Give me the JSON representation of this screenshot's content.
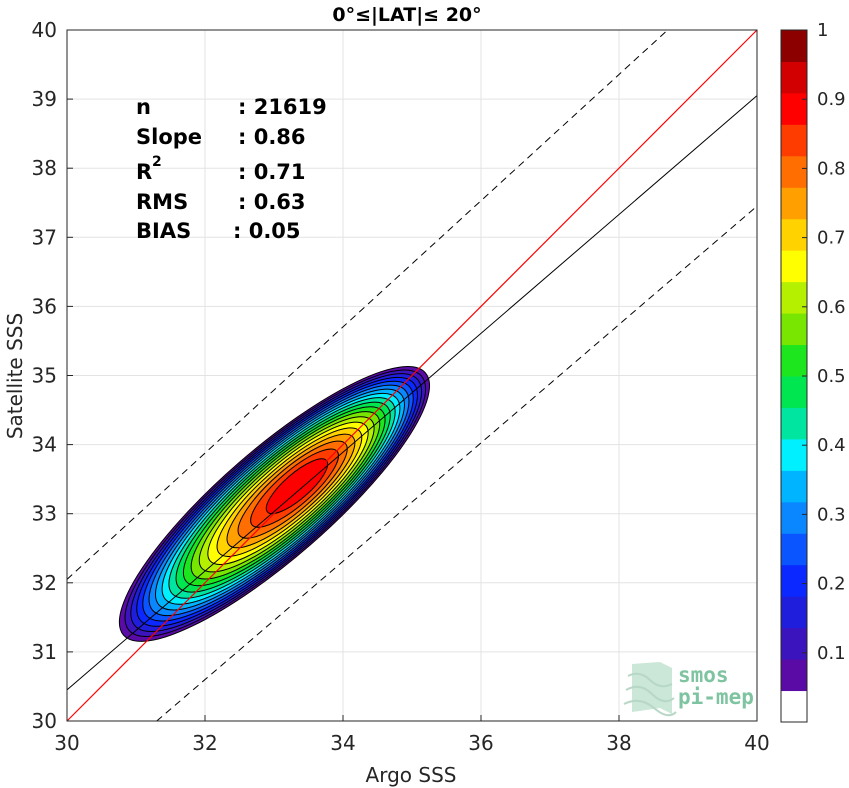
{
  "chart_data": {
    "type": "contour-scatter",
    "title": "0°≤|LAT|≤ 20°",
    "xlabel": "Argo SSS",
    "ylabel": "Satellite SSS",
    "xlim": [
      30,
      40
    ],
    "ylim": [
      30,
      40
    ],
    "xticks": [
      30,
      32,
      34,
      36,
      38,
      40
    ],
    "yticks": [
      30,
      31,
      32,
      33,
      34,
      35,
      36,
      37,
      38,
      39,
      40
    ],
    "grid": true,
    "stats": {
      "n": {
        "label": "n",
        "value": ": 21619"
      },
      "slope": {
        "label": "Slope",
        "value": ": 0.86"
      },
      "r2": {
        "label": "R",
        "sup": "2",
        "value": ": 0.71"
      },
      "rms": {
        "label": "RMS",
        "value": ": 0.63"
      },
      "bias": {
        "label": "BIAS",
        "value": ": 0.05"
      }
    },
    "lines": {
      "identity": {
        "slope": 1,
        "intercept": 0,
        "color": "#ff0000"
      },
      "regression": {
        "slope": 0.86,
        "x0": 30,
        "y0": 30.45,
        "color": "#000000"
      },
      "upper_bound": {
        "x0": 30,
        "y0": 32.05,
        "x1": 39.8,
        "y1": 41.0,
        "style": "dashed"
      },
      "lower_bound": {
        "x0": 31.3,
        "y0": 30,
        "x1": 40,
        "y1": 37.45,
        "style": "dashed"
      }
    },
    "density_peak": {
      "x": 33.4,
      "y": 33.45
    },
    "contour_levels": [
      0.05,
      0.1,
      0.15,
      0.2,
      0.25,
      0.3,
      0.35,
      0.4,
      0.45,
      0.5,
      0.55,
      0.6,
      0.65,
      0.7,
      0.75,
      0.8,
      0.85,
      0.9,
      0.95
    ],
    "colorbar": {
      "ticks": [
        "0.1",
        "0.2",
        "0.3",
        "0.4",
        "0.5",
        "0.6",
        "0.7",
        "0.8",
        "0.9",
        "1"
      ],
      "tick_values": [
        0.1,
        0.2,
        0.3,
        0.4,
        0.5,
        0.6,
        0.7,
        0.8,
        0.9,
        1.0
      ],
      "colors": [
        "#ffffff",
        "#5a0aa5",
        "#3c14be",
        "#1e1edc",
        "#0a28ff",
        "#0a55ff",
        "#0a87ff",
        "#00b4ff",
        "#00f0ff",
        "#00e6a0",
        "#00e650",
        "#1ee61e",
        "#78e600",
        "#b4f000",
        "#ffff00",
        "#ffd200",
        "#ffa000",
        "#ff6e00",
        "#ff3c00",
        "#ff0000",
        "#d20000",
        "#8c0000"
      ]
    }
  },
  "logo": {
    "line1": "smos",
    "line2": "pi-mep",
    "color": "#7fc4a0"
  }
}
